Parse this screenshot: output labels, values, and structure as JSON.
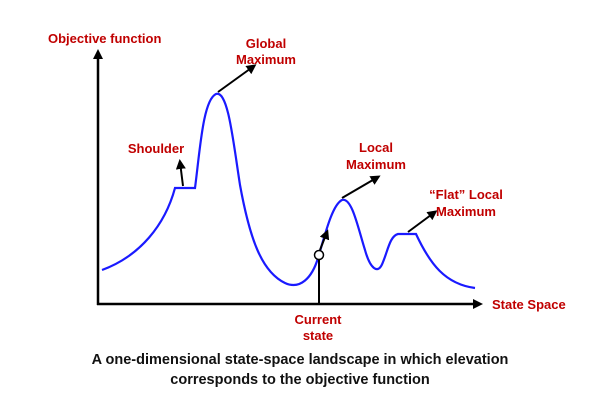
{
  "labels": {
    "y_axis": "Objective function",
    "x_axis": "State Space",
    "global_max": [
      "Global",
      "Maximum"
    ],
    "shoulder": "Shoulder",
    "local_max": [
      "Local",
      "Maximum"
    ],
    "flat_local_max": [
      "“Flat” Local",
      "Maximum"
    ],
    "current_state": [
      "Current",
      "state"
    ]
  },
  "caption": [
    "A one-dimensional state-space landscape in which elevation",
    "corresponds to the objective function"
  ],
  "colors": {
    "curve": "#1a1aff",
    "label": "#c00000",
    "axis": "#000000"
  }
}
